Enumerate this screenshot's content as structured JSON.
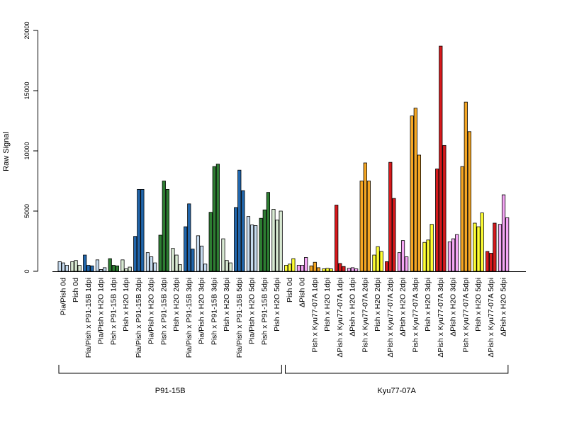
{
  "chart_data": {
    "type": "bar",
    "ylabel": "Raw Signal",
    "ylim": [
      0,
      20000
    ],
    "yticks": [
      0,
      5000,
      10000,
      15000,
      20000
    ],
    "grid": false,
    "legend": "none",
    "colors": {
      "pia_pish": "#c6dbef",
      "pish": "#d9ead3",
      "p91_infected": "#2166ac",
      "pish_p91": "#2d7d32",
      "delta_pish": "#f4a6f4",
      "kyu_infected": "#d7191c",
      "pish_kyu": "#f5a623",
      "pish_kyu_h2o": "#ffff33"
    },
    "groups": [
      {
        "label": "P91-15B",
        "start": 0,
        "end": 17
      },
      {
        "label": "Kyu77-07A",
        "start": 18,
        "end": 35
      }
    ],
    "categories": [
      {
        "label": "Pia/Pish 0d",
        "color_key": "pia_pish",
        "values": [
          800,
          700,
          500
        ]
      },
      {
        "label": "Pish 0d",
        "color_key": "pish",
        "values": [
          800,
          900,
          500
        ]
      },
      {
        "label": "Pia/Pish x P91-15B 1dpi",
        "color_key": "p91_infected",
        "values": [
          1350,
          500,
          450
        ]
      },
      {
        "label": "Pia/Pish x H2O 1dpi",
        "color_key": "pia_pish",
        "values": [
          950,
          150,
          300
        ]
      },
      {
        "label": "Pish x P91-15B 1dpi",
        "color_key": "pish_p91",
        "values": [
          1050,
          500,
          450
        ]
      },
      {
        "label": "Pish x H2O 1dpi",
        "color_key": "pish",
        "values": [
          950,
          200,
          350
        ]
      },
      {
        "label": "Pia/Pish x P91-15B 2dpi",
        "color_key": "p91_infected",
        "values": [
          2900,
          6800,
          6800
        ]
      },
      {
        "label": "Pia/Pish x H2O 2dpi",
        "color_key": "pia_pish",
        "values": [
          1550,
          1200,
          700
        ]
      },
      {
        "label": "Pish x P91-15B 2dpi",
        "color_key": "pish_p91",
        "values": [
          3000,
          7500,
          6800
        ]
      },
      {
        "label": "Pish x H2O 2dpi",
        "color_key": "pish",
        "values": [
          1900,
          1350,
          550
        ]
      },
      {
        "label": "Pia/Pish x P91-15B 3dpi",
        "color_key": "p91_infected",
        "values": [
          3700,
          5600,
          1850
        ]
      },
      {
        "label": "Pia/Pish x H2O 3dpi",
        "color_key": "pia_pish",
        "values": [
          2950,
          2100,
          600
        ]
      },
      {
        "label": "Pish x P91-15B 3dpi",
        "color_key": "pish_p91",
        "values": [
          4900,
          8700,
          8900
        ]
      },
      {
        "label": "Pish x H2O 3dpi",
        "color_key": "pish",
        "values": [
          2700,
          900,
          700
        ]
      },
      {
        "label": "Pia/Pish x P91-15B 5dpi",
        "color_key": "p91_infected",
        "values": [
          5300,
          8400,
          6700
        ]
      },
      {
        "label": "Pia/Pish x H2O 5dpi",
        "color_key": "pia_pish",
        "values": [
          4550,
          3850,
          3800
        ]
      },
      {
        "label": "Pish x P91-15B 5dpi",
        "color_key": "pish_p91",
        "values": [
          4400,
          5100,
          6550
        ]
      },
      {
        "label": "Pish x H2O 5dpi",
        "color_key": "pish",
        "values": [
          5150,
          4250,
          5000
        ]
      },
      {
        "label": "Pish 0d",
        "color_key": "pish_kyu_h2o",
        "values": [
          500,
          600,
          1050
        ]
      },
      {
        "label": "ΔPish 0d",
        "color_key": "delta_pish",
        "values": [
          500,
          500,
          1150
        ]
      },
      {
        "label": "Pish x Kyu77-07A 1dpi",
        "color_key": "pish_kyu",
        "values": [
          450,
          750,
          300
        ]
      },
      {
        "label": "Pish x H2O 1dpi",
        "color_key": "pish_kyu_h2o",
        "values": [
          200,
          250,
          200
        ]
      },
      {
        "label": "ΔPish x Kyu77-07A 1dpi",
        "color_key": "kyu_infected",
        "values": [
          5500,
          650,
          400
        ]
      },
      {
        "label": "ΔPish x H2O 1dpi",
        "color_key": "delta_pish",
        "values": [
          250,
          300,
          200
        ]
      },
      {
        "label": "Pish x Kyu77-07A 2dpi",
        "color_key": "pish_kyu",
        "values": [
          7500,
          9000,
          7500
        ]
      },
      {
        "label": "Pish x H2O 2dpi",
        "color_key": "pish_kyu_h2o",
        "values": [
          1350,
          2050,
          1650
        ]
      },
      {
        "label": "ΔPish x Kyu77-07A 2dpi",
        "color_key": "kyu_infected",
        "values": [
          800,
          9050,
          6050
        ]
      },
      {
        "label": "ΔPish x H2O 2dpi",
        "color_key": "delta_pish",
        "values": [
          1550,
          2550,
          1200
        ]
      },
      {
        "label": "Pish x Kyu77-07A 3dpi",
        "color_key": "pish_kyu",
        "values": [
          12900,
          13550,
          9650
        ]
      },
      {
        "label": "Pish x H2O 3dpi",
        "color_key": "pish_kyu_h2o",
        "values": [
          2400,
          2600,
          3900
        ]
      },
      {
        "label": "ΔPish x Kyu77-07A 3dpi",
        "color_key": "kyu_infected",
        "values": [
          8500,
          18700,
          10450
        ]
      },
      {
        "label": "ΔPish x H2O 3dpi",
        "color_key": "delta_pish",
        "values": [
          2450,
          2700,
          3050
        ]
      },
      {
        "label": "Pish x Kyu77-07A 5dpi",
        "color_key": "pish_kyu",
        "values": [
          8700,
          14050,
          11600
        ]
      },
      {
        "label": "Pish x H2O 5dpi",
        "color_key": "pish_kyu_h2o",
        "values": [
          4000,
          3700,
          4850
        ]
      },
      {
        "label": "ΔPish x Kyu77-07A 5dpi",
        "color_key": "kyu_infected",
        "values": [
          1650,
          1500,
          4000
        ]
      },
      {
        "label": "ΔPish x H2O 5dpi",
        "color_key": "delta_pish",
        "values": [
          3900,
          6350,
          4450
        ]
      }
    ]
  }
}
